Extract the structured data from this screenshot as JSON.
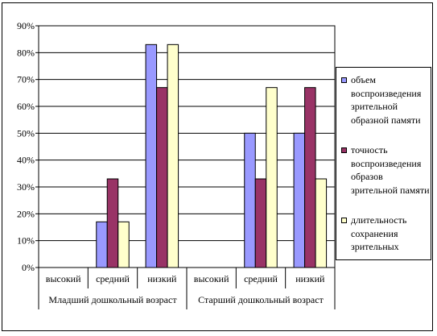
{
  "chart_data": {
    "type": "bar",
    "title": "",
    "xlabel": "",
    "ylabel": "",
    "ylim": [
      0,
      90
    ],
    "y_tick_step": 10,
    "y_ticks": [
      "0%",
      "10%",
      "20%",
      "30%",
      "40%",
      "50%",
      "60%",
      "70%",
      "80%",
      "90%"
    ],
    "grid": true,
    "legend_position": "right",
    "categories": [
      "высокий",
      "средний",
      "низкий",
      "высокий",
      "средний",
      "низкий"
    ],
    "groups": [
      "Младший дошкольный возраст",
      "Старший дошкольный возраст"
    ],
    "series": [
      {
        "name": "объем воспроизведения зрительной образной памяти",
        "color": "#9999ff",
        "values": [
          0,
          17,
          83,
          0,
          50,
          50
        ]
      },
      {
        "name": "точность воспроизведения образов зрительной памяти",
        "color": "#993366",
        "values": [
          0,
          33,
          67,
          0,
          33,
          67
        ]
      },
      {
        "name": "длительность сохранения зрительных",
        "color": "#ffffcc",
        "values": [
          0,
          17,
          83,
          0,
          67,
          33
        ]
      }
    ]
  }
}
